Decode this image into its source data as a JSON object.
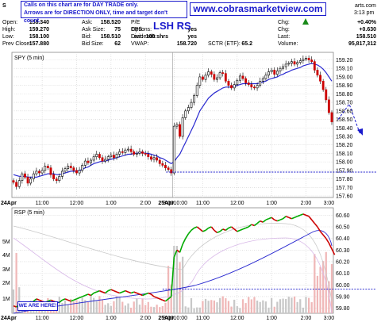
{
  "header": {
    "symbol_fragment": "S",
    "ticker_overlay": "LSH RS",
    "time_fragment": "3:13 pm",
    "charts_fragment": "arts.com",
    "rows": [
      [
        {
          "label": "Open:",
          "value": "158.340"
        },
        {
          "label": "Ask:",
          "value": "158.520"
        },
        {
          "label": "P/E",
          "value": ""
        },
        {
          "label": "Chg:",
          "value": "+0.40%"
        }
      ],
      [
        {
          "label": "High:",
          "value": "159.270"
        },
        {
          "label": "Ask Size:",
          "value": "75"
        },
        {
          "label": "Options:",
          "value": "yes"
        },
        {
          "label": "Chg:",
          "value": "+0.630"
        }
      ],
      [
        {
          "label": "Low:",
          "value": "158.100"
        },
        {
          "label": "Bid:",
          "value": "158.510"
        },
        {
          "label": "Dividends:",
          "value": "yes"
        },
        {
          "label": "Last:",
          "value": "158.510"
        }
      ],
      [
        {
          "label": "Prev Close:",
          "value": "157.880"
        },
        {
          "label": "Bid Size:",
          "value": "62"
        },
        {
          "label": "VWAP:",
          "value": "158.720"
        },
        {
          "label": "Volume:",
          "value": "95,817,312"
        }
      ]
    ],
    "extra_labels": {
      "eps": "EPS:",
      "last": "Last:",
      "last_value": "100 shrs",
      "sctr": "SCTR (ETF):",
      "sctr_value": "65.2"
    }
  },
  "notes": {
    "call_note_line1": "Calls on this chart are for DAY TRADE only.",
    "call_note_line2": "Arrows are for DIRECTION ONLY, time and target don't count.",
    "website": "www.cobrasmarketview.com",
    "we_are_here": "WE ARE HERE!"
  },
  "colors": {
    "up": "#1a1acc",
    "down": "#cc0000",
    "ma": "#2a2ad0",
    "accent": "#1a1acc",
    "rsp_up": "#00aa00",
    "rsp_down": "#cc0000",
    "rsp_flat": "#1a1acc"
  },
  "chart_data": [
    {
      "type": "line",
      "title": "SPY (5 min)",
      "xlabel": "",
      "ylabel": "",
      "ylim": [
        157.6,
        159.27
      ],
      "x_ticks": [
        "24Apr",
        "11:00",
        "12:00",
        "1:00",
        "2:00",
        "3:00",
        "25Apr",
        "10:00",
        "11:00",
        "12:00",
        "1:00",
        "2:00",
        "3:00"
      ],
      "y_ticks": [
        157.6,
        157.7,
        157.8,
        157.9,
        158.0,
        158.1,
        158.2,
        158.3,
        158.4,
        158.5,
        158.6,
        158.7,
        158.8,
        158.9,
        159.0,
        159.1,
        159.2
      ],
      "series": [
        {
          "values": [
            157.76,
            157.71,
            157.78,
            157.86,
            157.82,
            157.75,
            157.8,
            157.86,
            157.89,
            157.87,
            157.9,
            157.95,
            157.93,
            157.85,
            157.8,
            157.78,
            157.83,
            157.89,
            157.92,
            157.95,
            157.93,
            157.9,
            157.87,
            157.9,
            157.96,
            158.01,
            157.99,
            158.02,
            158.06,
            158.09,
            158.05,
            158.01,
            158.03,
            158.06,
            158.08,
            158.05,
            158.09,
            158.12,
            158.11,
            158.14,
            158.15,
            158.12,
            158.09,
            158.1,
            158.12,
            158.1,
            158.09,
            158.06,
            158.03,
            158.05,
            158.02,
            157.98,
            157.96,
            157.93,
            157.91,
            157.87,
            158.42,
            158.44,
            158.3,
            158.52,
            158.6,
            158.64,
            158.7,
            158.78,
            158.9,
            159.0,
            158.97,
            159.02,
            159.06,
            159.03,
            158.97,
            158.99,
            159.05,
            159.04,
            158.95,
            158.9,
            158.87,
            158.91,
            158.96,
            159.01,
            158.98,
            158.93,
            158.91,
            158.88,
            158.87,
            158.9,
            158.95,
            158.98,
            159.02,
            159.06,
            159.08,
            159.03,
            159.07,
            159.1,
            159.12,
            159.15,
            159.16,
            159.18,
            159.15,
            159.17,
            159.19,
            159.21,
            159.22,
            159.2,
            159.18,
            159.08,
            159.02,
            158.95,
            158.85,
            158.73,
            158.58,
            158.47
          ]
        },
        {
          "name": "",
          "values": [
            157.85,
            157.84,
            157.83,
            157.83,
            157.83,
            157.82,
            157.82,
            157.82,
            157.82,
            157.83,
            157.84,
            157.85,
            157.86,
            157.86,
            157.86,
            157.85,
            157.85,
            157.86,
            157.87,
            157.88,
            157.89,
            157.89,
            157.89,
            157.9,
            157.91,
            157.93,
            157.94,
            157.96,
            157.98,
            157.99,
            158.0,
            158.01,
            158.01,
            158.02,
            158.03,
            158.04,
            158.05,
            158.06,
            158.07,
            158.08,
            158.09,
            158.09,
            158.1,
            158.1,
            158.11,
            158.11,
            158.1,
            158.1,
            158.09,
            158.08,
            158.07,
            158.05,
            158.04,
            158.02,
            158.0,
            157.98,
            158.0,
            158.05,
            158.09,
            158.16,
            158.23,
            158.3,
            158.37,
            158.44,
            158.52,
            158.6,
            158.65,
            158.7,
            158.75,
            158.78,
            158.81,
            158.83,
            158.85,
            158.87,
            158.88,
            158.88,
            158.88,
            158.89,
            158.9,
            158.91,
            158.92,
            158.92,
            158.92,
            158.92,
            158.92,
            158.92,
            158.93,
            158.94,
            158.95,
            158.97,
            158.98,
            158.99,
            159.0,
            159.02,
            159.03,
            159.05,
            159.06,
            159.08,
            159.09,
            159.1,
            159.11,
            159.13,
            159.14,
            159.15,
            159.16,
            159.15,
            159.14,
            159.12,
            159.09,
            159.05,
            159.0,
            158.95
          ]
        }
      ],
      "reference_lines": [
        157.88
      ],
      "projection": [
        158.5,
        158.68,
        158.32
      ]
    },
    {
      "type": "line",
      "title": "RSP (5 min)",
      "xlabel": "",
      "ylabel": "",
      "ylim": [
        59.77,
        60.65
      ],
      "y_ticks": [
        59.8,
        59.9,
        60.0,
        60.1,
        60.2,
        60.3,
        60.4,
        60.5,
        60.6
      ],
      "volume_ticks": [
        "1M",
        "2M",
        "3M",
        "4M",
        "5M"
      ],
      "series": [
        {
          "values": [
            59.82,
            59.81,
            59.83,
            59.84,
            59.83,
            59.82,
            59.84,
            59.86,
            59.88,
            59.87,
            59.86,
            59.85,
            59.86,
            59.87,
            59.86,
            59.85,
            59.85,
            59.87,
            59.88,
            59.87,
            59.86,
            59.87,
            59.88,
            59.89,
            59.9,
            59.91,
            59.92,
            59.91,
            59.93,
            59.94,
            59.95,
            59.94,
            59.93,
            59.95,
            59.96,
            59.95,
            59.94,
            59.93,
            59.94,
            59.95,
            59.94,
            59.93,
            59.94,
            59.93,
            59.92,
            59.91,
            59.92,
            59.93,
            59.92,
            59.9,
            59.89,
            59.88,
            59.87,
            59.86,
            59.88,
            59.9,
            60.24,
            60.3,
            60.28,
            60.35,
            60.4,
            60.44,
            60.47,
            60.49,
            60.5,
            60.48,
            60.46,
            60.47,
            60.49,
            60.5,
            60.47,
            60.45,
            60.46,
            60.48,
            60.47,
            60.49,
            60.5,
            60.48,
            60.46,
            60.47,
            60.48,
            60.49,
            60.5,
            60.52,
            60.51,
            60.53,
            60.55,
            60.54,
            60.56,
            60.57,
            60.58,
            60.56,
            60.55,
            60.56,
            60.57,
            60.59,
            60.58,
            60.57,
            60.58,
            60.59,
            60.6,
            60.61,
            60.6,
            60.59,
            60.56,
            60.53,
            60.5,
            60.46,
            60.43,
            60.4,
            60.36,
            60.31,
            60.26
          ]
        }
      ],
      "reference_lines": [
        59.965
      ]
    }
  ]
}
